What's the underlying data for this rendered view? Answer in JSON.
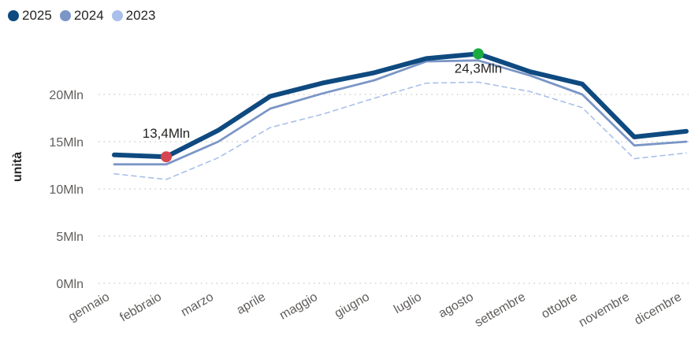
{
  "chart_data": {
    "type": "line",
    "ylabel": "unità",
    "categories": [
      "gennaio",
      "febbraio",
      "marzo",
      "aprile",
      "maggio",
      "giugno",
      "luglio",
      "agosto",
      "settembre",
      "ottobre",
      "novembre",
      "dicembre"
    ],
    "ylim": [
      0,
      25
    ],
    "y_ticks": [
      "0Mln",
      "5Mln",
      "10Mln",
      "15Mln",
      "20Mln"
    ],
    "y_tick_values": [
      0,
      5,
      10,
      15,
      20
    ],
    "grid": true,
    "legend_position": "top-left",
    "series": [
      {
        "name": "2025",
        "color": "#0e4a80",
        "style": "solid-thick",
        "values": [
          13.6,
          13.4,
          16.2,
          19.8,
          21.2,
          22.3,
          23.8,
          24.3,
          22.4,
          21.1,
          15.5,
          16.1
        ]
      },
      {
        "name": "2024",
        "color": "#7b96c6",
        "style": "solid",
        "values": [
          12.6,
          12.6,
          15.0,
          18.5,
          20.1,
          21.5,
          23.5,
          23.6,
          22.0,
          20.0,
          14.6,
          15.0
        ]
      },
      {
        "name": "2023",
        "color": "#a9c0ea",
        "style": "dashed",
        "values": [
          11.6,
          11.0,
          13.3,
          16.5,
          17.9,
          19.6,
          21.2,
          21.3,
          20.3,
          18.6,
          13.2,
          13.8
        ]
      }
    ],
    "annotations": [
      {
        "text": "13,4Mln",
        "series": 0,
        "index": 1,
        "marker_color": "#d64550"
      },
      {
        "text": "24,3Mln",
        "series": 0,
        "index": 7,
        "marker_color": "#1aab40"
      }
    ]
  }
}
